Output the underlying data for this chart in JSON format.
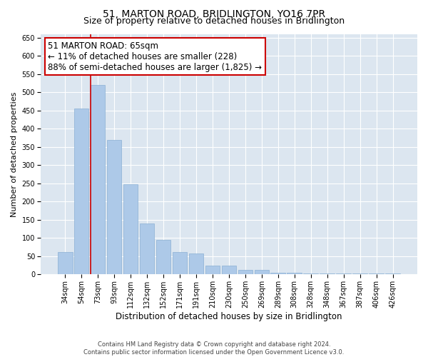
{
  "title": "51, MARTON ROAD, BRIDLINGTON, YO16 7PR",
  "subtitle": "Size of property relative to detached houses in Bridlington",
  "xlabel": "Distribution of detached houses by size in Bridlington",
  "ylabel": "Number of detached properties",
  "categories": [
    "34sqm",
    "54sqm",
    "73sqm",
    "93sqm",
    "112sqm",
    "132sqm",
    "152sqm",
    "171sqm",
    "191sqm",
    "210sqm",
    "230sqm",
    "250sqm",
    "269sqm",
    "289sqm",
    "308sqm",
    "328sqm",
    "348sqm",
    "367sqm",
    "387sqm",
    "406sqm",
    "426sqm"
  ],
  "values": [
    62,
    455,
    520,
    370,
    248,
    140,
    95,
    62,
    58,
    25,
    25,
    12,
    12,
    5,
    5,
    3,
    3,
    2,
    2,
    2,
    2
  ],
  "bar_color": "#adc9e8",
  "bar_edge_color": "#8ab0d4",
  "vline_x_index": 2,
  "vline_color": "#cc0000",
  "annotation_text": "51 MARTON ROAD: 65sqm\n← 11% of detached houses are smaller (228)\n88% of semi-detached houses are larger (1,825) →",
  "annotation_box_color": "#ffffff",
  "annotation_box_edgecolor": "#cc0000",
  "ylim": [
    0,
    660
  ],
  "yticks": [
    0,
    50,
    100,
    150,
    200,
    250,
    300,
    350,
    400,
    450,
    500,
    550,
    600,
    650
  ],
  "background_color": "#dce6f0",
  "footer_line1": "Contains HM Land Registry data © Crown copyright and database right 2024.",
  "footer_line2": "Contains public sector information licensed under the Open Government Licence v3.0.",
  "title_fontsize": 10,
  "xlabel_fontsize": 8.5,
  "ylabel_fontsize": 8,
  "tick_fontsize": 7,
  "annotation_fontsize": 8.5
}
